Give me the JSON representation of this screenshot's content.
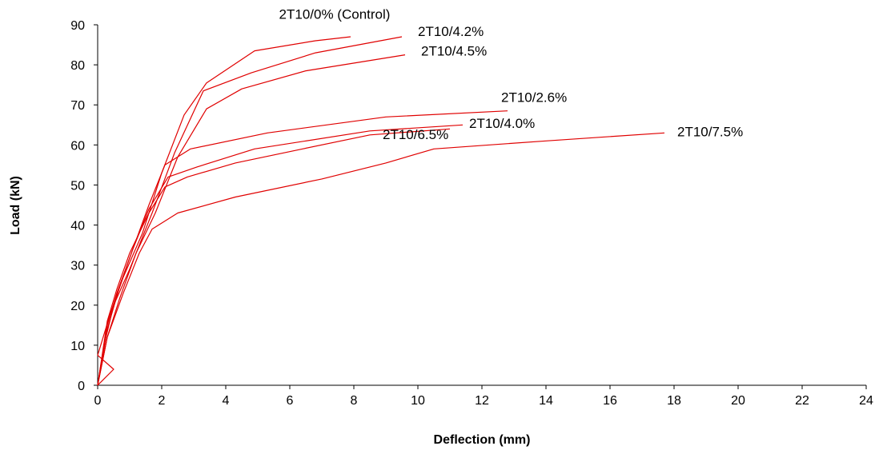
{
  "chart_data": {
    "type": "line",
    "title": "",
    "xlabel": "Deflection (mm)",
    "ylabel": "Load (kN)",
    "xlim": [
      0,
      24
    ],
    "ylim": [
      0,
      90
    ],
    "xticks": [
      0,
      2,
      4,
      6,
      8,
      10,
      12,
      14,
      16,
      18,
      20,
      22,
      24
    ],
    "yticks": [
      0,
      10,
      20,
      30,
      40,
      50,
      60,
      70,
      80,
      90
    ],
    "grid": false,
    "legend": "none",
    "line_color": "#e00000",
    "series": [
      {
        "name": "2T10/0% (Control)",
        "x": [
          0,
          0.5,
          0,
          0.4,
          0.8,
          1.4,
          2.0,
          2.7,
          3.4,
          4.9,
          6.8,
          7.9
        ],
        "y": [
          0,
          4,
          7.5,
          18,
          27,
          38,
          53,
          67.5,
          75.5,
          83.5,
          86,
          87
        ]
      },
      {
        "name": "2T10/4.2%",
        "x": [
          0,
          0.2,
          0.5,
          1.0,
          1.7,
          2.4,
          3.3,
          4.8,
          6.8,
          9.5
        ],
        "y": [
          0,
          10,
          20,
          29,
          43,
          58,
          73.5,
          78,
          83,
          87
        ]
      },
      {
        "name": "2T10/4.5%",
        "x": [
          0,
          0.3,
          0.7,
          1.2,
          1.8,
          2.5,
          3.4,
          4.5,
          6.5,
          9.6
        ],
        "y": [
          0,
          12,
          22,
          33,
          43,
          57,
          69,
          74,
          78.5,
          82.5
        ]
      },
      {
        "name": "2T10/2.6%",
        "x": [
          0,
          0.3,
          0.6,
          1.1,
          1.6,
          2.1,
          2.9,
          5.3,
          9.0,
          12.8
        ],
        "y": [
          0,
          15,
          23,
          34,
          45,
          55,
          59,
          63,
          67,
          68.5
        ]
      },
      {
        "name": "2T10/4.0%",
        "x": [
          0,
          0.3,
          0.7,
          1.1,
          1.6,
          2.2,
          3.1,
          4.9,
          8.5,
          11.4
        ],
        "y": [
          0,
          14,
          25,
          34,
          44,
          52,
          54.5,
          59,
          63.5,
          65
        ]
      },
      {
        "name": "2T10/6.5%",
        "x": [
          0,
          0.3,
          0.6,
          1.0,
          1.6,
          2.1,
          2.8,
          4.3,
          6.4,
          8.5,
          11.0
        ],
        "y": [
          0,
          16,
          24,
          33,
          43,
          49.5,
          52,
          55.5,
          59,
          62.5,
          64
        ]
      },
      {
        "name": "2T10/7.5%",
        "x": [
          0,
          0.3,
          0.8,
          1.3,
          1.7,
          2.5,
          4.3,
          7.0,
          9.0,
          10.5,
          14.0,
          17.7
        ],
        "y": [
          0,
          12,
          23,
          33,
          39,
          43,
          47,
          51.5,
          55.5,
          59,
          61,
          63
        ]
      }
    ],
    "annotations": [
      {
        "text": "2T10/0% (Control)",
        "x": 7.4,
        "y": 91.5,
        "anchor": "middle"
      },
      {
        "text": "2T10/4.2%",
        "x": 10.0,
        "y": 87.2,
        "anchor": "start"
      },
      {
        "text": "2T10/4.5%",
        "x": 10.1,
        "y": 82.3,
        "anchor": "start"
      },
      {
        "text": "2T10/2.6%",
        "x": 12.6,
        "y": 70.7,
        "anchor": "start"
      },
      {
        "text": "2T10/4.0%",
        "x": 11.6,
        "y": 64.3,
        "anchor": "start"
      },
      {
        "text": "2T10/6.5%",
        "x": 8.9,
        "y": 61.5,
        "anchor": "start"
      },
      {
        "text": "2T10/7.5%",
        "x": 18.1,
        "y": 62.2,
        "anchor": "start"
      }
    ]
  }
}
